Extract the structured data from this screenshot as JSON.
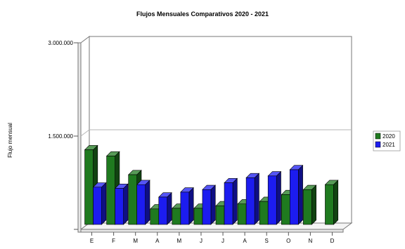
{
  "chart_data": {
    "type": "bar",
    "title": "Flujos Mensuales Comparativos 2020 - 2021",
    "xlabel": "",
    "ylabel": "Flujo mensual",
    "categories": [
      "E",
      "F",
      "M",
      "A",
      "M",
      "J",
      "J",
      "A",
      "S",
      "O",
      "N",
      "D"
    ],
    "yticks": [
      {
        "value": 0,
        "label": ""
      },
      {
        "value": 1500000,
        "label": "1.500.000"
      },
      {
        "value": 3000000,
        "label": "3.000.000"
      }
    ],
    "ylim": [
      0,
      3000000
    ],
    "grid": true,
    "legend_position": "right",
    "series": [
      {
        "name": "2020",
        "color": "#1f7a1f",
        "values": [
          1200000,
          1100000,
          800000,
          250000,
          260000,
          260000,
          300000,
          330000,
          370000,
          480000,
          560000,
          640000
        ]
      },
      {
        "name": "2021",
        "color": "#1c1cf0",
        "values": [
          600000,
          580000,
          640000,
          440000,
          520000,
          560000,
          670000,
          750000,
          780000,
          880000,
          null,
          null
        ]
      }
    ]
  }
}
